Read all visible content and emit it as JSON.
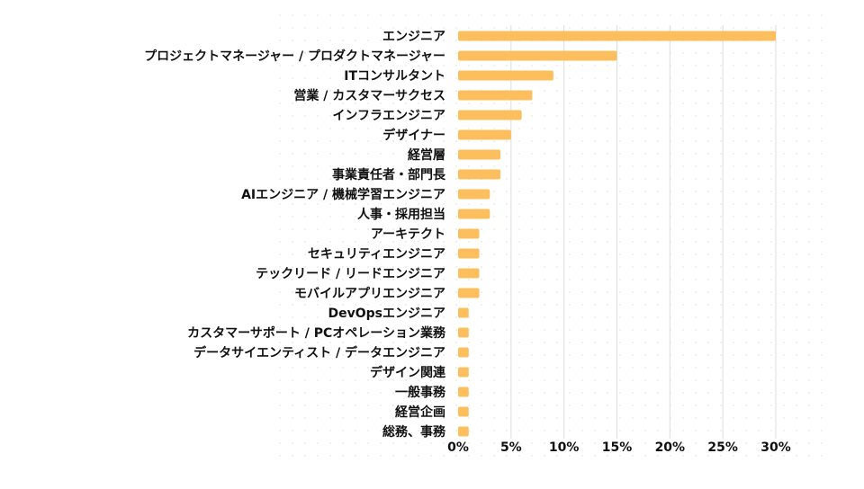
{
  "chart_data": {
    "type": "bar",
    "orientation": "horizontal",
    "title": "",
    "xlabel": "",
    "ylabel": "",
    "xlim": [
      0,
      31
    ],
    "grid": true,
    "categories": [
      "エンジニア",
      "プロジェクトマネージャー / プロダクトマネージャー",
      "ITコンサルタント",
      "営業 / カスタマーサクセス",
      "インフラエンジニア",
      "デザイナー",
      "経営層",
      "事業責任者・部門長",
      "AIエンジニア / 機械学習エンジニア",
      "人事・採用担当",
      "アーキテクト",
      "セキュリティエンジニア",
      "テックリード / リードエンジニア",
      "モバイルアプリエンジニア",
      "DevOpsエンジニア",
      "カスタマーサポート / PCオペレーション業務",
      "データサイエンティスト / データエンジニア",
      "デザイン関連",
      "一般事務",
      "経営企画",
      "総務、事務"
    ],
    "values": [
      30,
      15,
      9,
      7,
      6,
      5,
      4,
      4,
      3,
      3,
      2,
      2,
      2,
      2,
      1,
      1,
      1,
      1,
      1,
      1,
      1
    ],
    "x_ticks": [
      0,
      5,
      10,
      15,
      20,
      25,
      30
    ],
    "x_tick_labels": [
      "0%",
      "5%",
      "10%",
      "15%",
      "20%",
      "25%",
      "30%"
    ],
    "colors": {
      "bar": "#FDBF5E",
      "grid": "#DDDDDD",
      "text": "#111111",
      "background_dots": "#F1EEE6"
    }
  }
}
